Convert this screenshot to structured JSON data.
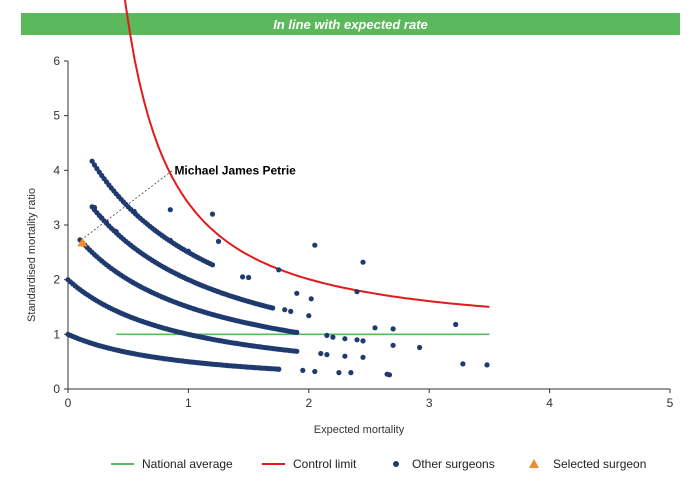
{
  "banner": {
    "text": "In line with expected rate"
  },
  "chart_data": {
    "type": "scatter",
    "xlabel": "Expected mortality",
    "ylabel": "Standardised mortality ratio",
    "xlim": [
      0,
      5
    ],
    "ylim": [
      0,
      6
    ],
    "x_ticks": [
      "0",
      "1",
      "2",
      "3",
      "4",
      "5"
    ],
    "y_ticks": [
      "0",
      "1",
      "2",
      "3",
      "4",
      "5",
      "6"
    ],
    "grid": false,
    "legend_position": "bottom",
    "colors": {
      "national": "#5cb85c",
      "control": "#e31a1c",
      "others": "#1f3a6e",
      "selected": "#f28c28"
    },
    "series": [
      {
        "name": "National average",
        "kind": "line",
        "x": [
          0.4,
          3.5
        ],
        "y": [
          1,
          1
        ]
      },
      {
        "name": "Control limit",
        "kind": "curve",
        "x_start": 0.4,
        "x_end": 3.5,
        "k": 2.4,
        "a": 1.25
      },
      {
        "name": "Other surgeons",
        "kind": "scatter",
        "curve_counts": [
          1,
          2,
          3,
          4,
          5
        ],
        "curve_x_ranges": [
          [
            0,
            1.75
          ],
          [
            0,
            1.9
          ],
          [
            0.1,
            1.9
          ],
          [
            0.2,
            1.7
          ],
          [
            0.2,
            1.2
          ]
        ],
        "points": [
          [
            0.22,
            3.32
          ],
          [
            0.28,
            3.13
          ],
          [
            0.32,
            3.05
          ],
          [
            0.4,
            2.88
          ],
          [
            0.55,
            3.25
          ],
          [
            0.85,
            3.28
          ],
          [
            1.2,
            3.2
          ],
          [
            0.85,
            2.72
          ],
          [
            1.25,
            2.7
          ],
          [
            2.05,
            2.63
          ],
          [
            1.0,
            2.52
          ],
          [
            1.75,
            2.18
          ],
          [
            2.45,
            2.32
          ],
          [
            1.45,
            2.05
          ],
          [
            1.5,
            2.04
          ],
          [
            1.9,
            1.75
          ],
          [
            2.4,
            1.78
          ],
          [
            2.02,
            1.65
          ],
          [
            1.8,
            1.45
          ],
          [
            1.85,
            1.42
          ],
          [
            2.0,
            1.34
          ],
          [
            2.55,
            1.12
          ],
          [
            2.7,
            1.1
          ],
          [
            3.22,
            1.18
          ],
          [
            2.15,
            0.98
          ],
          [
            2.2,
            0.95
          ],
          [
            2.3,
            0.92
          ],
          [
            2.4,
            0.9
          ],
          [
            2.45,
            0.88
          ],
          [
            2.7,
            0.8
          ],
          [
            2.92,
            0.76
          ],
          [
            2.1,
            0.65
          ],
          [
            2.15,
            0.63
          ],
          [
            2.3,
            0.6
          ],
          [
            2.45,
            0.58
          ],
          [
            1.95,
            0.34
          ],
          [
            2.05,
            0.32
          ],
          [
            2.25,
            0.3
          ],
          [
            2.35,
            0.3
          ],
          [
            2.65,
            0.27
          ],
          [
            2.67,
            0.26
          ],
          [
            3.28,
            0.46
          ],
          [
            3.48,
            0.44
          ],
          [
            1.75,
            0.36
          ]
        ]
      },
      {
        "name": "Selected surgeon",
        "kind": "marker",
        "x": 0.12,
        "y": 2.68
      }
    ],
    "annotation": {
      "text": "Michael James Petrie",
      "x": 0.12,
      "y": 2.68
    }
  }
}
